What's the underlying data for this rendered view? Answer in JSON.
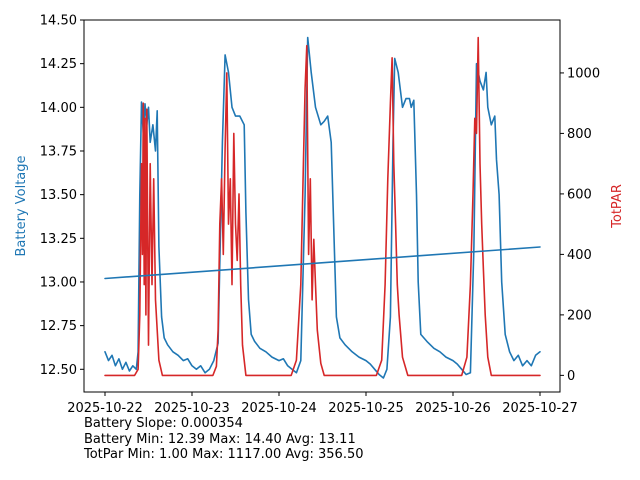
{
  "chart_data": {
    "type": "line",
    "x_axis": {
      "tick_labels": [
        "2025-10-22",
        "2025-10-23",
        "2025-10-24",
        "2025-10-25",
        "2025-10-26",
        "2025-10-27"
      ],
      "range_days": [
        0,
        5
      ]
    },
    "left_axis": {
      "label": "Battery Voltage",
      "color": "#1f77b4",
      "ylim": [
        12.37,
        14.5
      ],
      "ticks": [
        12.5,
        12.75,
        13.0,
        13.25,
        13.5,
        13.75,
        14.0,
        14.25,
        14.5
      ],
      "tick_labels": [
        "12.50",
        "12.75",
        "13.00",
        "13.25",
        "13.50",
        "13.75",
        "14.00",
        "14.25",
        "14.50"
      ]
    },
    "right_axis": {
      "label": "TotPAR",
      "color": "#d62728",
      "ylim": [
        -55,
        1175
      ],
      "ticks": [
        0,
        200,
        400,
        600,
        800,
        1000
      ],
      "tick_labels": [
        "0",
        "200",
        "400",
        "600",
        "800",
        "1000"
      ]
    },
    "series": [
      {
        "name": "Battery Voltage",
        "axis": "left",
        "color": "#1f77b4",
        "points": [
          [
            0.0,
            12.6
          ],
          [
            0.04,
            12.55
          ],
          [
            0.08,
            12.58
          ],
          [
            0.12,
            12.52
          ],
          [
            0.16,
            12.56
          ],
          [
            0.2,
            12.5
          ],
          [
            0.24,
            12.54
          ],
          [
            0.28,
            12.49
          ],
          [
            0.32,
            12.52
          ],
          [
            0.36,
            12.5
          ],
          [
            0.38,
            12.6
          ],
          [
            0.4,
            13.5
          ],
          [
            0.42,
            14.03
          ],
          [
            0.44,
            13.85
          ],
          [
            0.46,
            14.02
          ],
          [
            0.48,
            13.9
          ],
          [
            0.5,
            14.0
          ],
          [
            0.52,
            13.8
          ],
          [
            0.55,
            13.9
          ],
          [
            0.58,
            13.75
          ],
          [
            0.6,
            13.98
          ],
          [
            0.62,
            13.2
          ],
          [
            0.65,
            12.8
          ],
          [
            0.68,
            12.68
          ],
          [
            0.72,
            12.64
          ],
          [
            0.78,
            12.6
          ],
          [
            0.84,
            12.58
          ],
          [
            0.9,
            12.55
          ],
          [
            0.95,
            12.56
          ],
          [
            1.0,
            12.52
          ],
          [
            1.05,
            12.5
          ],
          [
            1.1,
            12.52
          ],
          [
            1.15,
            12.48
          ],
          [
            1.2,
            12.5
          ],
          [
            1.25,
            12.55
          ],
          [
            1.3,
            12.65
          ],
          [
            1.35,
            13.8
          ],
          [
            1.38,
            14.3
          ],
          [
            1.42,
            14.2
          ],
          [
            1.46,
            14.0
          ],
          [
            1.5,
            13.95
          ],
          [
            1.55,
            13.95
          ],
          [
            1.6,
            13.9
          ],
          [
            1.62,
            13.4
          ],
          [
            1.65,
            12.9
          ],
          [
            1.68,
            12.7
          ],
          [
            1.72,
            12.66
          ],
          [
            1.78,
            12.62
          ],
          [
            1.85,
            12.6
          ],
          [
            1.92,
            12.57
          ],
          [
            2.0,
            12.55
          ],
          [
            2.05,
            12.56
          ],
          [
            2.1,
            12.52
          ],
          [
            2.15,
            12.5
          ],
          [
            2.2,
            12.48
          ],
          [
            2.25,
            12.55
          ],
          [
            2.3,
            13.5
          ],
          [
            2.33,
            14.4
          ],
          [
            2.37,
            14.2
          ],
          [
            2.42,
            14.0
          ],
          [
            2.48,
            13.9
          ],
          [
            2.52,
            13.92
          ],
          [
            2.56,
            13.95
          ],
          [
            2.6,
            13.8
          ],
          [
            2.63,
            13.3
          ],
          [
            2.66,
            12.8
          ],
          [
            2.7,
            12.68
          ],
          [
            2.76,
            12.64
          ],
          [
            2.84,
            12.6
          ],
          [
            2.92,
            12.57
          ],
          [
            3.0,
            12.55
          ],
          [
            3.05,
            12.53
          ],
          [
            3.1,
            12.5
          ],
          [
            3.15,
            12.47
          ],
          [
            3.2,
            12.45
          ],
          [
            3.24,
            12.5
          ],
          [
            3.28,
            12.8
          ],
          [
            3.31,
            13.8
          ],
          [
            3.33,
            14.28
          ],
          [
            3.37,
            14.2
          ],
          [
            3.42,
            14.0
          ],
          [
            3.46,
            14.05
          ],
          [
            3.5,
            14.05
          ],
          [
            3.52,
            14.0
          ],
          [
            3.55,
            14.04
          ],
          [
            3.58,
            13.5
          ],
          [
            3.6,
            13.0
          ],
          [
            3.63,
            12.7
          ],
          [
            3.7,
            12.66
          ],
          [
            3.78,
            12.62
          ],
          [
            3.85,
            12.6
          ],
          [
            3.92,
            12.57
          ],
          [
            4.0,
            12.55
          ],
          [
            4.05,
            12.53
          ],
          [
            4.1,
            12.5
          ],
          [
            4.15,
            12.47
          ],
          [
            4.2,
            12.48
          ],
          [
            4.24,
            13.2
          ],
          [
            4.27,
            14.25
          ],
          [
            4.31,
            14.15
          ],
          [
            4.35,
            14.1
          ],
          [
            4.38,
            14.2
          ],
          [
            4.4,
            14.0
          ],
          [
            4.44,
            13.9
          ],
          [
            4.48,
            13.95
          ],
          [
            4.5,
            13.7
          ],
          [
            4.53,
            13.5
          ],
          [
            4.56,
            13.0
          ],
          [
            4.6,
            12.7
          ],
          [
            4.65,
            12.6
          ],
          [
            4.7,
            12.55
          ],
          [
            4.75,
            12.58
          ],
          [
            4.8,
            12.52
          ],
          [
            4.85,
            12.55
          ],
          [
            4.9,
            12.52
          ],
          [
            4.95,
            12.58
          ],
          [
            5.0,
            12.6
          ]
        ]
      },
      {
        "name": "TotPAR",
        "axis": "right",
        "color": "#d62728",
        "points": [
          [
            0.0,
            0
          ],
          [
            0.34,
            0
          ],
          [
            0.38,
            20
          ],
          [
            0.4,
            200
          ],
          [
            0.42,
            700
          ],
          [
            0.43,
            400
          ],
          [
            0.44,
            900
          ],
          [
            0.45,
            300
          ],
          [
            0.46,
            850
          ],
          [
            0.47,
            200
          ],
          [
            0.48,
            880
          ],
          [
            0.5,
            100
          ],
          [
            0.52,
            700
          ],
          [
            0.54,
            300
          ],
          [
            0.56,
            650
          ],
          [
            0.58,
            250
          ],
          [
            0.6,
            150
          ],
          [
            0.62,
            50
          ],
          [
            0.66,
            0
          ],
          [
            1.24,
            0
          ],
          [
            1.28,
            30
          ],
          [
            1.3,
            150
          ],
          [
            1.32,
            500
          ],
          [
            1.34,
            650
          ],
          [
            1.36,
            400
          ],
          [
            1.38,
            750
          ],
          [
            1.4,
            1000
          ],
          [
            1.42,
            500
          ],
          [
            1.44,
            650
          ],
          [
            1.46,
            300
          ],
          [
            1.48,
            800
          ],
          [
            1.5,
            500
          ],
          [
            1.52,
            380
          ],
          [
            1.54,
            600
          ],
          [
            1.56,
            300
          ],
          [
            1.58,
            100
          ],
          [
            1.62,
            0
          ],
          [
            2.14,
            0
          ],
          [
            2.2,
            50
          ],
          [
            2.25,
            300
          ],
          [
            2.28,
            700
          ],
          [
            2.3,
            950
          ],
          [
            2.32,
            1090
          ],
          [
            2.34,
            400
          ],
          [
            2.36,
            650
          ],
          [
            2.38,
            250
          ],
          [
            2.4,
            450
          ],
          [
            2.42,
            300
          ],
          [
            2.44,
            150
          ],
          [
            2.48,
            40
          ],
          [
            2.52,
            0
          ],
          [
            3.12,
            0
          ],
          [
            3.18,
            50
          ],
          [
            3.22,
            300
          ],
          [
            3.25,
            650
          ],
          [
            3.28,
            900
          ],
          [
            3.3,
            1050
          ],
          [
            3.32,
            700
          ],
          [
            3.34,
            500
          ],
          [
            3.36,
            300
          ],
          [
            3.38,
            200
          ],
          [
            3.42,
            60
          ],
          [
            3.48,
            0
          ],
          [
            4.1,
            0
          ],
          [
            4.16,
            60
          ],
          [
            4.2,
            300
          ],
          [
            4.23,
            600
          ],
          [
            4.25,
            850
          ],
          [
            4.27,
            800
          ],
          [
            4.29,
            1117
          ],
          [
            4.31,
            700
          ],
          [
            4.33,
            500
          ],
          [
            4.35,
            350
          ],
          [
            4.37,
            200
          ],
          [
            4.4,
            60
          ],
          [
            4.44,
            0
          ],
          [
            5.0,
            0
          ]
        ]
      },
      {
        "name": "Battery trend",
        "axis": "left",
        "color": "#1f77b4",
        "points": [
          [
            0.0,
            13.02
          ],
          [
            5.0,
            13.2
          ]
        ]
      }
    ],
    "stats": {
      "line1": "Battery Slope: 0.000354",
      "line2": "Battery Min: 12.39 Max: 14.40 Avg: 13.11",
      "line3": "TotPar Min: 1.00 Max: 1117.00 Avg: 356.50"
    }
  }
}
